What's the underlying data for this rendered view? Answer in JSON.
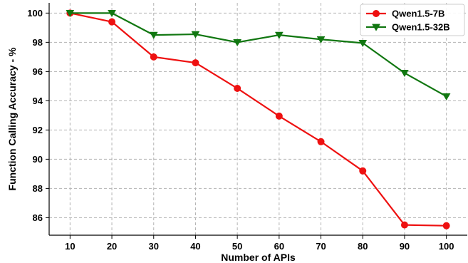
{
  "chart_data": {
    "type": "line",
    "xlabel": "Number of APIs",
    "ylabel": "Function Calling Accuracy - %",
    "x": [
      10,
      20,
      30,
      40,
      50,
      60,
      70,
      80,
      90,
      100
    ],
    "xlim": [
      5,
      105
    ],
    "ylim": [
      84.8,
      100.7
    ],
    "xticks": [
      10,
      20,
      30,
      40,
      50,
      60,
      70,
      80,
      90,
      100
    ],
    "yticks": [
      86,
      88,
      90,
      92,
      94,
      96,
      98,
      100
    ],
    "grid": true,
    "legend_position": "top-right",
    "series": [
      {
        "name": "Qwen1.5-7B",
        "marker": "circle",
        "color": "#ee1111",
        "values": [
          100.0,
          99.4,
          97.0,
          96.6,
          94.85,
          92.95,
          91.2,
          89.2,
          85.5,
          85.45
        ]
      },
      {
        "name": "Qwen1.5-32B",
        "marker": "triangle-down",
        "color": "#117711",
        "values": [
          100.0,
          100.0,
          98.5,
          98.55,
          98.0,
          98.5,
          98.2,
          97.95,
          95.9,
          94.3
        ]
      }
    ]
  }
}
